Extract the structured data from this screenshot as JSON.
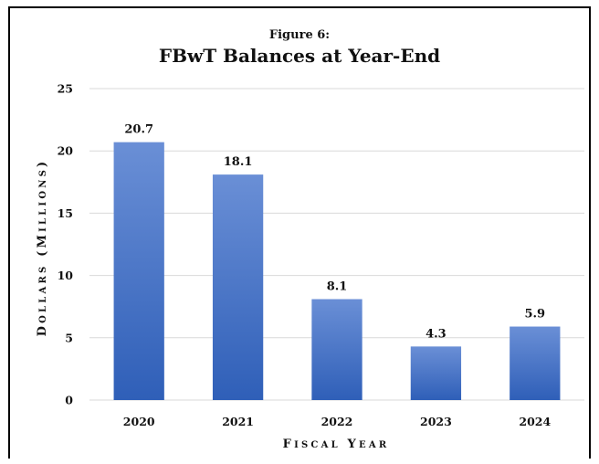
{
  "chart_data": {
    "type": "bar",
    "figure_label": "Figure 6:",
    "title": "FBwT Balances at Year-End",
    "xlabel": "Fiscal Year",
    "ylabel": "Dollars (Millions)",
    "categories": [
      "2020",
      "2021",
      "2022",
      "2023",
      "2024"
    ],
    "values": [
      20.7,
      18.1,
      8.1,
      4.3,
      5.9
    ],
    "value_labels": [
      "20.7",
      "18.1",
      "8.1",
      "4.3",
      "5.9"
    ],
    "yticks": [
      0,
      5,
      10,
      15,
      20,
      25
    ],
    "ylim": [
      0,
      25
    ],
    "grid": true,
    "legend": "none",
    "colors": {
      "bar_top": "#6a8fd6",
      "bar_bottom": "#2f5fb8",
      "grid": "#d9d9d9",
      "frame": "#000000"
    }
  }
}
